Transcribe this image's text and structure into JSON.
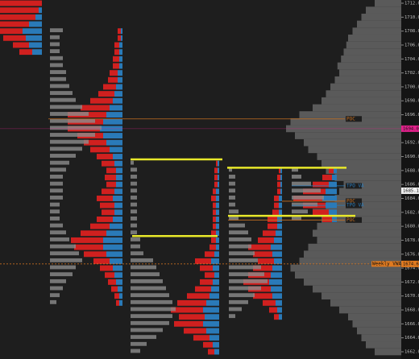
{
  "chart_data": {
    "type": "market_profile",
    "ylim": [
      1661.5,
      1712.5
    ],
    "yticks": [
      {
        "value": 1712,
        "label": "1712.0"
      },
      {
        "value": 1710,
        "label": "1710.0"
      },
      {
        "value": 1708,
        "label": "1708.0"
      },
      {
        "value": 1706,
        "label": "1706.0"
      },
      {
        "value": 1704,
        "label": "1704.0"
      },
      {
        "value": 1702,
        "label": "1702.0"
      },
      {
        "value": 1700,
        "label": "1700.0"
      },
      {
        "value": 1698,
        "label": "1698.0"
      },
      {
        "value": 1696,
        "label": "1696.0"
      },
      {
        "value": 1694,
        "label": "1694.0"
      },
      {
        "value": 1692,
        "label": "1692.0"
      },
      {
        "value": 1690,
        "label": "1690.0"
      },
      {
        "value": 1688,
        "label": "1688.0"
      },
      {
        "value": 1686,
        "label": "1686.0"
      },
      {
        "value": 1684,
        "label": "1684.0"
      },
      {
        "value": 1682,
        "label": "1682.0"
      },
      {
        "value": 1680,
        "label": "1680.0"
      },
      {
        "value": 1678,
        "label": "1678.0"
      },
      {
        "value": 1676,
        "label": "1676.0"
      },
      {
        "value": 1674,
        "label": "1674.0"
      },
      {
        "value": 1672,
        "label": "1672.0"
      },
      {
        "value": 1670,
        "label": "1670.0"
      },
      {
        "value": 1668,
        "label": "1668.0"
      },
      {
        "value": 1666,
        "label": "1666.0"
      },
      {
        "value": 1664,
        "label": "1664.0"
      },
      {
        "value": 1662,
        "label": "1662.0"
      }
    ],
    "volume_profile": {
      "color": "#5a5a5a",
      "start": 1662,
      "values": [
        30,
        40,
        45,
        50,
        55,
        60,
        70,
        80,
        90,
        100,
        110,
        120,
        125,
        115,
        110,
        105,
        95,
        100,
        95,
        90,
        100,
        85,
        75,
        70,
        65,
        75,
        85,
        90,
        95,
        105,
        110,
        120,
        130,
        125,
        115,
        100,
        90,
        85,
        80,
        75,
        70,
        72,
        68,
        65,
        62,
        60,
        55,
        50,
        45,
        40,
        30
      ]
    },
    "colors": {
      "red": "#d0201f",
      "blue": "#2a7ab8",
      "tpo": "#8c8c8c"
    },
    "sessions": [
      {
        "start": 1705,
        "red": [
          8,
          10,
          14,
          18,
          22,
          26,
          30,
          34
        ],
        "blue": [
          6,
          8,
          10,
          12,
          8,
          4,
          2,
          0
        ]
      },
      {
        "start": 1669,
        "red": [
          2,
          3,
          4,
          5,
          6,
          8,
          10,
          14,
          18,
          20,
          16,
          12,
          10,
          8,
          9,
          10,
          8,
          6,
          7,
          6,
          8,
          10,
          12,
          14,
          16,
          20,
          22,
          24,
          18,
          14,
          10,
          8,
          6,
          5,
          4,
          4,
          3,
          3,
          2,
          2
        ],
        "blue": [
          2,
          2,
          3,
          4,
          5,
          6,
          8,
          10,
          12,
          12,
          10,
          8,
          6,
          5,
          5,
          6,
          5,
          4,
          4,
          4,
          5,
          6,
          8,
          10,
          12,
          14,
          12,
          10,
          8,
          6,
          5,
          4,
          3,
          3,
          2,
          2,
          2,
          2,
          1,
          1
        ],
        "tpo": [
          2,
          3,
          4,
          5,
          7,
          8,
          10,
          9,
          8,
          6,
          5,
          4,
          3,
          3,
          3,
          4,
          4,
          4,
          4,
          5,
          6,
          8,
          10,
          12,
          14,
          16,
          14,
          12,
          10,
          8,
          7,
          6,
          5,
          5,
          4,
          4,
          3,
          3,
          3,
          4
        ]
      },
      {
        "start": 1662,
        "red": [
          4,
          6,
          10,
          14,
          18,
          16,
          20,
          18,
          14,
          10,
          8,
          6,
          8,
          10,
          6,
          4,
          3,
          3,
          2,
          2,
          2,
          2,
          3,
          2,
          2,
          2,
          2,
          1
        ],
        "blue": [
          3,
          4,
          6,
          8,
          10,
          9,
          10,
          8,
          6,
          5,
          4,
          3,
          4,
          5,
          3,
          2,
          2,
          2,
          2,
          2,
          2,
          2,
          2,
          2,
          1,
          1,
          1,
          1
        ],
        "tpo": [
          3,
          5,
          8,
          10,
          12,
          13,
          14,
          13,
          12,
          11,
          10,
          9,
          8,
          7,
          4,
          3,
          3,
          2,
          2,
          2,
          2,
          2,
          2,
          2,
          2,
          2,
          2,
          1
        ]
      },
      {
        "start": 1667,
        "red": [
          3,
          5,
          8,
          12,
          14,
          16,
          14,
          12,
          10,
          12,
          14,
          10,
          8,
          6,
          6,
          4,
          3,
          3,
          2,
          2,
          2,
          1
        ],
        "blue": [
          2,
          3,
          4,
          6,
          7,
          8,
          7,
          6,
          5,
          6,
          7,
          5,
          4,
          3,
          3,
          2,
          2,
          2,
          1,
          1,
          1,
          1
        ],
        "tpo": [
          2,
          4,
          6,
          8,
          10,
          12,
          11,
          10,
          9,
          8,
          7,
          7,
          6,
          5,
          3,
          3,
          2,
          2,
          2,
          2,
          2,
          1
        ]
      },
      {
        "start": 1681,
        "red": [
          6,
          10,
          14,
          18,
          14,
          10,
          6,
          3
        ],
        "blue": [
          3,
          5,
          7,
          9,
          7,
          5,
          3,
          2
        ],
        "tpo": [
          3,
          5,
          8,
          10,
          9,
          6,
          3,
          2
        ]
      }
    ],
    "levels": [
      {
        "price": 1689.6,
        "color": "#e8e82a"
      },
      {
        "price": 1678.6,
        "color": "#e8e82a"
      },
      {
        "price": 1688.4,
        "color": "#e8e82a"
      },
      {
        "price": 1681.5,
        "color": "#e8e82a"
      }
    ],
    "lines": [
      {
        "price": 1695.4,
        "label": "POC",
        "color": "#c87020"
      },
      {
        "price": 1683.6,
        "label": "POC",
        "color": "#c87020"
      },
      {
        "price": 1680.9,
        "label": "POC",
        "color": "#c87020"
      },
      {
        "price": 1685.8,
        "label": "TPO VA",
        "color": "#2a7ab8"
      },
      {
        "price": 1683.0,
        "label": "TPO VA",
        "color": "#2a7ab8"
      },
      {
        "price": 1674.6,
        "label": "Weekly VWAP",
        "color": "#e07a20"
      }
    ],
    "markers": [
      {
        "price": 1694.0,
        "label": "1694.0",
        "color": "#e0208a"
      },
      {
        "price": 1685.1,
        "label": "1685.1",
        "color": "#eeeeee"
      },
      {
        "price": 1674.6,
        "label": "1674.6",
        "color": "#e07a20"
      }
    ]
  }
}
